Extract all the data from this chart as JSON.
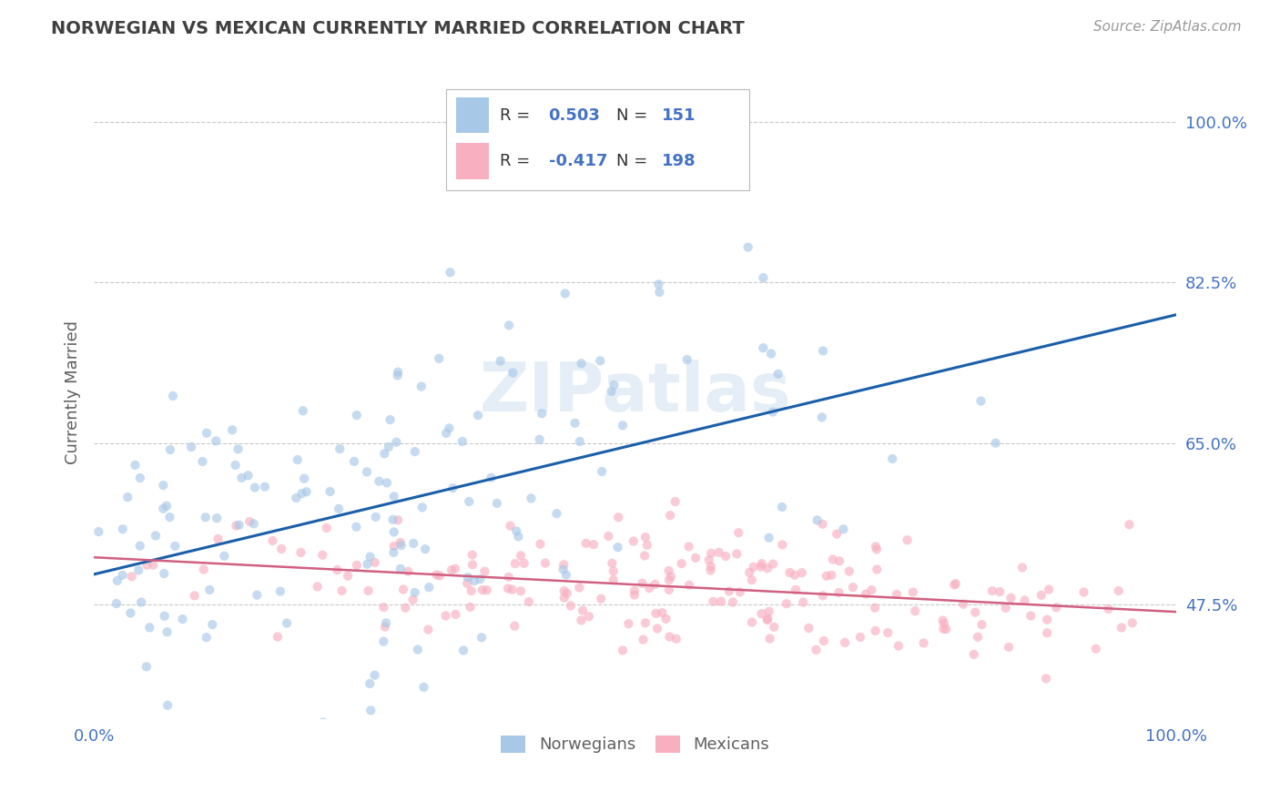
{
  "title": "NORWEGIAN VS MEXICAN CURRENTLY MARRIED CORRELATION CHART",
  "source": "Source: ZipAtlas.com",
  "ylabel": "Currently Married",
  "xlim": [
    0.0,
    1.0
  ],
  "ylim": [
    0.35,
    1.06
  ],
  "yticks": [
    0.475,
    0.65,
    0.825,
    1.0
  ],
  "ytick_labels": [
    "47.5%",
    "65.0%",
    "82.5%",
    "100.0%"
  ],
  "xticks": [
    0.0,
    1.0
  ],
  "xtick_labels": [
    "0.0%",
    "100.0%"
  ],
  "norwegian_color": "#a8c8e8",
  "mexican_color": "#f8b0c0",
  "norwegian_line_color": "#1a5fa8",
  "mexican_line_color": "#d06080",
  "legend_label1": "Norwegians",
  "legend_label2": "Mexicans",
  "watermark": "ZIPatlas",
  "background_color": "#ffffff",
  "grid_color": "#c8c8c8",
  "title_color": "#404040",
  "axis_label_color": "#606060",
  "tick_color": "#4472c4",
  "blue_text_color": "#4472c4",
  "norwegian_R": 0.503,
  "norwegian_N": 151,
  "mexican_R": -0.417,
  "mexican_N": 198,
  "point_size": 55,
  "point_alpha": 0.65
}
